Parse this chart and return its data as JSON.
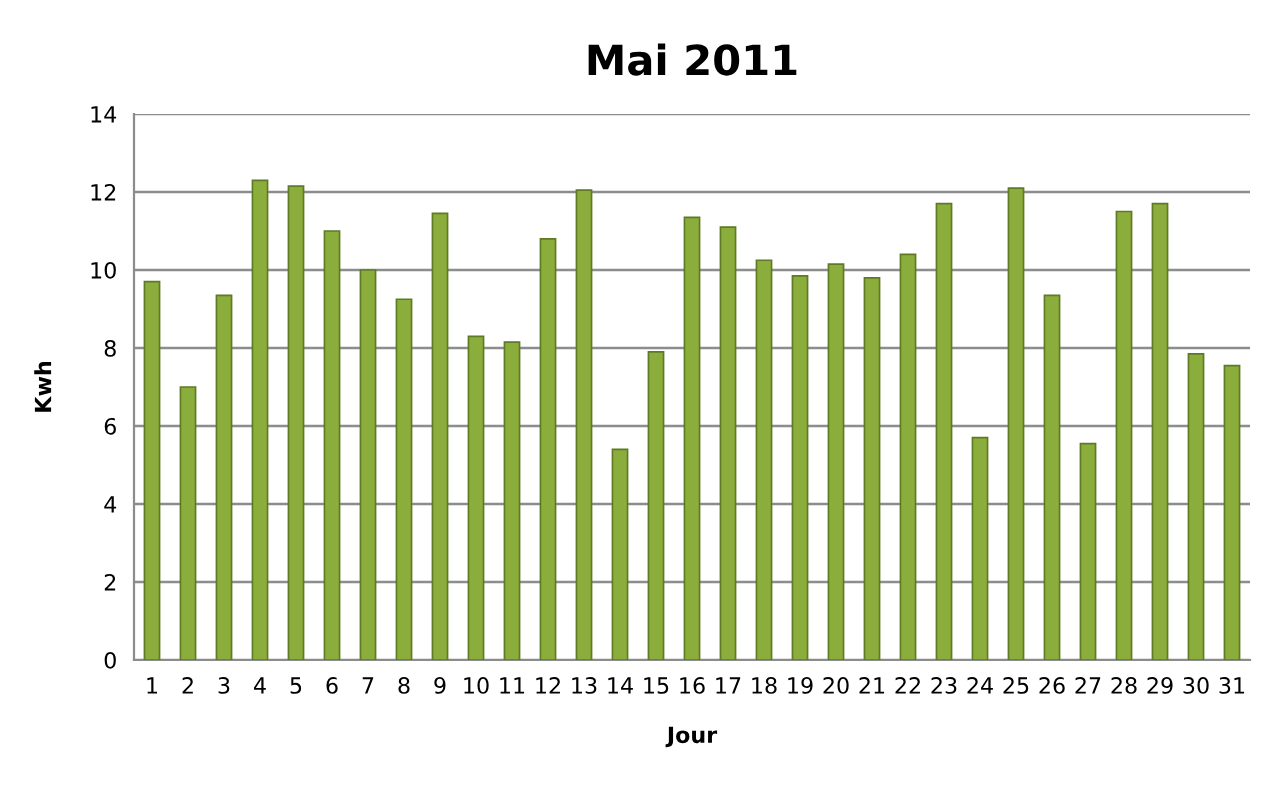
{
  "chart_data": {
    "type": "bar",
    "title": "Mai 2011",
    "xlabel": "Jour",
    "ylabel": "Kwh",
    "categories": [
      "1",
      "2",
      "3",
      "4",
      "5",
      "6",
      "7",
      "8",
      "9",
      "10",
      "11",
      "12",
      "13",
      "14",
      "15",
      "16",
      "17",
      "18",
      "19",
      "20",
      "21",
      "22",
      "23",
      "24",
      "25",
      "26",
      "27",
      "28",
      "29",
      "30",
      "31"
    ],
    "values": [
      9.7,
      7.0,
      9.35,
      12.3,
      12.15,
      11.0,
      10.0,
      9.25,
      11.45,
      8.3,
      8.15,
      10.8,
      12.05,
      5.4,
      7.9,
      11.35,
      11.1,
      10.25,
      9.85,
      10.15,
      9.8,
      10.4,
      11.7,
      5.7,
      12.1,
      9.35,
      5.55,
      11.5,
      11.7,
      7.85,
      7.55
    ],
    "color": "#8aad3b",
    "ylim": [
      0,
      14
    ],
    "yticks": [
      0,
      2,
      4,
      6,
      8,
      10,
      12,
      14
    ],
    "grid": "y"
  }
}
